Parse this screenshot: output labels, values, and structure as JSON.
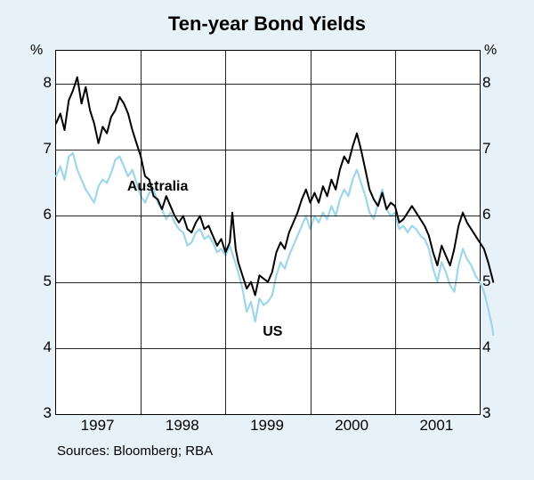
{
  "chart": {
    "title": "Ten-year Bond Yields",
    "type": "line",
    "background_color": "#e6f2f7",
    "plot_background_color": "#ffffff",
    "grid_color": "#000000",
    "border_color": "#000000",
    "y_unit": "%",
    "ylim": [
      3,
      8.5
    ],
    "yticks": [
      3,
      4,
      5,
      6,
      7,
      8
    ],
    "xlim": [
      1996.5,
      2001.5
    ],
    "xticks": [
      1997,
      1998,
      1999,
      2000,
      2001
    ],
    "xtick_labels": [
      "1997",
      "1998",
      "1999",
      "2000",
      "2001"
    ],
    "title_fontsize": 22,
    "tick_fontsize": 17,
    "label_fontsize": 16,
    "series": [
      {
        "name": "US",
        "label": "US",
        "color": "#9ed6ea",
        "line_width": 2.2,
        "data": [
          [
            1996.5,
            6.6
          ],
          [
            1996.55,
            6.75
          ],
          [
            1996.6,
            6.55
          ],
          [
            1996.65,
            6.9
          ],
          [
            1996.7,
            6.95
          ],
          [
            1996.75,
            6.7
          ],
          [
            1996.8,
            6.55
          ],
          [
            1996.85,
            6.4
          ],
          [
            1996.9,
            6.3
          ],
          [
            1996.95,
            6.2
          ],
          [
            1997.0,
            6.45
          ],
          [
            1997.05,
            6.55
          ],
          [
            1997.1,
            6.5
          ],
          [
            1997.15,
            6.65
          ],
          [
            1997.2,
            6.85
          ],
          [
            1997.25,
            6.9
          ],
          [
            1997.3,
            6.75
          ],
          [
            1997.35,
            6.6
          ],
          [
            1997.4,
            6.7
          ],
          [
            1997.45,
            6.5
          ],
          [
            1997.5,
            6.3
          ],
          [
            1997.55,
            6.2
          ],
          [
            1997.6,
            6.35
          ],
          [
            1997.65,
            6.4
          ],
          [
            1997.7,
            6.2
          ],
          [
            1997.75,
            6.1
          ],
          [
            1997.8,
            5.95
          ],
          [
            1997.85,
            6.05
          ],
          [
            1997.9,
            5.9
          ],
          [
            1997.95,
            5.8
          ],
          [
            1998.0,
            5.75
          ],
          [
            1998.05,
            5.55
          ],
          [
            1998.1,
            5.6
          ],
          [
            1998.15,
            5.75
          ],
          [
            1998.2,
            5.8
          ],
          [
            1998.25,
            5.65
          ],
          [
            1998.3,
            5.7
          ],
          [
            1998.35,
            5.6
          ],
          [
            1998.4,
            5.45
          ],
          [
            1998.45,
            5.5
          ],
          [
            1998.5,
            5.4
          ],
          [
            1998.55,
            5.55
          ],
          [
            1998.6,
            5.35
          ],
          [
            1998.65,
            5.15
          ],
          [
            1998.7,
            4.9
          ],
          [
            1998.75,
            4.55
          ],
          [
            1998.8,
            4.7
          ],
          [
            1998.85,
            4.4
          ],
          [
            1998.9,
            4.75
          ],
          [
            1998.95,
            4.65
          ],
          [
            1999.0,
            4.7
          ],
          [
            1999.05,
            4.8
          ],
          [
            1999.1,
            5.1
          ],
          [
            1999.15,
            5.3
          ],
          [
            1999.2,
            5.2
          ],
          [
            1999.25,
            5.4
          ],
          [
            1999.3,
            5.55
          ],
          [
            1999.35,
            5.7
          ],
          [
            1999.4,
            5.85
          ],
          [
            1999.45,
            6.0
          ],
          [
            1999.5,
            5.8
          ],
          [
            1999.55,
            6.0
          ],
          [
            1999.6,
            5.9
          ],
          [
            1999.65,
            6.05
          ],
          [
            1999.7,
            5.95
          ],
          [
            1999.75,
            6.15
          ],
          [
            1999.8,
            6.0
          ],
          [
            1999.85,
            6.25
          ],
          [
            1999.9,
            6.4
          ],
          [
            1999.95,
            6.3
          ],
          [
            2000.0,
            6.55
          ],
          [
            2000.05,
            6.7
          ],
          [
            2000.1,
            6.5
          ],
          [
            2000.15,
            6.3
          ],
          [
            2000.2,
            6.05
          ],
          [
            2000.25,
            5.95
          ],
          [
            2000.3,
            6.2
          ],
          [
            2000.35,
            6.4
          ],
          [
            2000.4,
            6.1
          ],
          [
            2000.45,
            6.0
          ],
          [
            2000.5,
            6.05
          ],
          [
            2000.55,
            5.8
          ],
          [
            2000.6,
            5.85
          ],
          [
            2000.65,
            5.75
          ],
          [
            2000.7,
            5.85
          ],
          [
            2000.75,
            5.8
          ],
          [
            2000.8,
            5.7
          ],
          [
            2000.85,
            5.65
          ],
          [
            2000.9,
            5.5
          ],
          [
            2000.95,
            5.2
          ],
          [
            2001.0,
            5.0
          ],
          [
            2001.05,
            5.3
          ],
          [
            2001.1,
            5.15
          ],
          [
            2001.15,
            4.95
          ],
          [
            2001.2,
            4.85
          ],
          [
            2001.25,
            5.25
          ],
          [
            2001.3,
            5.5
          ],
          [
            2001.35,
            5.35
          ],
          [
            2001.4,
            5.25
          ],
          [
            2001.45,
            5.1
          ],
          [
            2001.5,
            5.0
          ],
          [
            2001.55,
            4.85
          ],
          [
            2001.6,
            4.6
          ],
          [
            2001.65,
            4.3
          ],
          [
            2001.66,
            4.2
          ]
        ]
      },
      {
        "name": "Australia",
        "label": "Australia",
        "color": "#000000",
        "line_width": 2.0,
        "data": [
          [
            1996.5,
            7.4
          ],
          [
            1996.55,
            7.55
          ],
          [
            1996.6,
            7.3
          ],
          [
            1996.65,
            7.75
          ],
          [
            1996.7,
            7.9
          ],
          [
            1996.75,
            8.1
          ],
          [
            1996.8,
            7.7
          ],
          [
            1996.85,
            7.95
          ],
          [
            1996.9,
            7.6
          ],
          [
            1996.95,
            7.4
          ],
          [
            1997.0,
            7.1
          ],
          [
            1997.05,
            7.35
          ],
          [
            1997.1,
            7.25
          ],
          [
            1997.15,
            7.5
          ],
          [
            1997.2,
            7.6
          ],
          [
            1997.25,
            7.8
          ],
          [
            1997.3,
            7.7
          ],
          [
            1997.35,
            7.55
          ],
          [
            1997.4,
            7.3
          ],
          [
            1997.45,
            7.1
          ],
          [
            1997.5,
            6.9
          ],
          [
            1997.55,
            6.6
          ],
          [
            1997.6,
            6.55
          ],
          [
            1997.65,
            6.3
          ],
          [
            1997.7,
            6.25
          ],
          [
            1997.75,
            6.1
          ],
          [
            1997.8,
            6.3
          ],
          [
            1997.85,
            6.15
          ],
          [
            1997.9,
            6.0
          ],
          [
            1997.95,
            5.9
          ],
          [
            1998.0,
            6.0
          ],
          [
            1998.05,
            5.8
          ],
          [
            1998.1,
            5.75
          ],
          [
            1998.15,
            5.9
          ],
          [
            1998.2,
            6.0
          ],
          [
            1998.25,
            5.8
          ],
          [
            1998.3,
            5.85
          ],
          [
            1998.35,
            5.7
          ],
          [
            1998.4,
            5.55
          ],
          [
            1998.45,
            5.65
          ],
          [
            1998.5,
            5.45
          ],
          [
            1998.55,
            5.6
          ],
          [
            1998.58,
            6.05
          ],
          [
            1998.62,
            5.5
          ],
          [
            1998.65,
            5.3
          ],
          [
            1998.7,
            5.1
          ],
          [
            1998.75,
            4.9
          ],
          [
            1998.8,
            5.0
          ],
          [
            1998.85,
            4.8
          ],
          [
            1998.9,
            5.1
          ],
          [
            1998.95,
            5.05
          ],
          [
            1999.0,
            5.0
          ],
          [
            1999.05,
            5.15
          ],
          [
            1999.1,
            5.45
          ],
          [
            1999.15,
            5.6
          ],
          [
            1999.2,
            5.5
          ],
          [
            1999.25,
            5.75
          ],
          [
            1999.3,
            5.9
          ],
          [
            1999.35,
            6.05
          ],
          [
            1999.4,
            6.25
          ],
          [
            1999.45,
            6.4
          ],
          [
            1999.5,
            6.2
          ],
          [
            1999.55,
            6.35
          ],
          [
            1999.6,
            6.2
          ],
          [
            1999.65,
            6.45
          ],
          [
            1999.7,
            6.3
          ],
          [
            1999.75,
            6.55
          ],
          [
            1999.8,
            6.4
          ],
          [
            1999.85,
            6.7
          ],
          [
            1999.9,
            6.9
          ],
          [
            1999.95,
            6.8
          ],
          [
            2000.0,
            7.05
          ],
          [
            2000.05,
            7.25
          ],
          [
            2000.1,
            7.0
          ],
          [
            2000.15,
            6.7
          ],
          [
            2000.2,
            6.4
          ],
          [
            2000.25,
            6.25
          ],
          [
            2000.3,
            6.15
          ],
          [
            2000.35,
            6.35
          ],
          [
            2000.4,
            6.1
          ],
          [
            2000.45,
            6.2
          ],
          [
            2000.5,
            6.15
          ],
          [
            2000.55,
            5.9
          ],
          [
            2000.6,
            5.95
          ],
          [
            2000.65,
            6.05
          ],
          [
            2000.7,
            6.15
          ],
          [
            2000.75,
            6.05
          ],
          [
            2000.8,
            5.95
          ],
          [
            2000.85,
            5.85
          ],
          [
            2000.9,
            5.7
          ],
          [
            2000.95,
            5.45
          ],
          [
            2001.0,
            5.25
          ],
          [
            2001.05,
            5.55
          ],
          [
            2001.1,
            5.4
          ],
          [
            2001.15,
            5.25
          ],
          [
            2001.2,
            5.5
          ],
          [
            2001.25,
            5.85
          ],
          [
            2001.3,
            6.05
          ],
          [
            2001.35,
            5.9
          ],
          [
            2001.4,
            5.8
          ],
          [
            2001.45,
            5.7
          ],
          [
            2001.5,
            5.6
          ],
          [
            2001.55,
            5.5
          ],
          [
            2001.6,
            5.3
          ],
          [
            2001.65,
            5.05
          ],
          [
            2001.66,
            5.0
          ]
        ]
      }
    ],
    "series_labels": [
      {
        "text": "Australia",
        "x": 1997.35,
        "y": 6.55
      },
      {
        "text": "US",
        "x": 1998.95,
        "y": 4.35
      }
    ],
    "sources": "Sources: Bloomberg; RBA"
  }
}
